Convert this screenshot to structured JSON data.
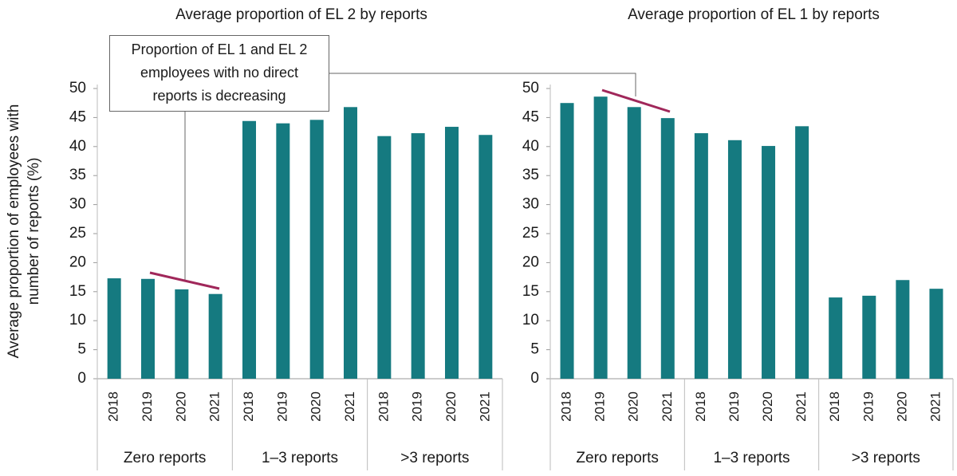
{
  "annotation": "Proportion of EL 1 and EL 2 employees with no direct reports is decreasing",
  "chart_data": [
    {
      "type": "bar",
      "title": "Average proportion of EL 2 by reports",
      "ylabel": "Average proportion of employees with number of reports (%)",
      "color": "#157a80",
      "ylim": [
        0,
        50
      ],
      "yticks": [
        0,
        5,
        10,
        15,
        20,
        25,
        30,
        35,
        40,
        45,
        50
      ],
      "groups": [
        {
          "name": "Zero reports",
          "categories": [
            "2018",
            "2019",
            "2020",
            "2021"
          ],
          "values": [
            17.3,
            17.2,
            15.4,
            14.6
          ]
        },
        {
          "name": "1–3 reports",
          "categories": [
            "2018",
            "2019",
            "2020",
            "2021"
          ],
          "values": [
            44.4,
            44.0,
            44.6,
            46.8
          ]
        },
        {
          "name": ">3 reports",
          "categories": [
            "2018",
            "2019",
            "2020",
            "2021"
          ],
          "values": [
            41.8,
            42.3,
            43.4,
            42.0
          ]
        }
      ]
    },
    {
      "type": "bar",
      "title": "Average proportion of EL 1 by reports",
      "color": "#157a80",
      "ylim": [
        0,
        50
      ],
      "yticks": [
        0,
        5,
        10,
        15,
        20,
        25,
        30,
        35,
        40,
        45,
        50
      ],
      "groups": [
        {
          "name": "Zero reports",
          "categories": [
            "2018",
            "2019",
            "2020",
            "2021"
          ],
          "values": [
            47.5,
            48.6,
            46.8,
            44.9
          ]
        },
        {
          "name": "1–3 reports",
          "categories": [
            "2018",
            "2019",
            "2020",
            "2021"
          ],
          "values": [
            42.3,
            41.1,
            40.1,
            43.5
          ]
        },
        {
          "name": ">3 reports",
          "categories": [
            "2018",
            "2019",
            "2020",
            "2021"
          ],
          "values": [
            14.0,
            14.3,
            17.0,
            15.5
          ]
        }
      ]
    }
  ]
}
